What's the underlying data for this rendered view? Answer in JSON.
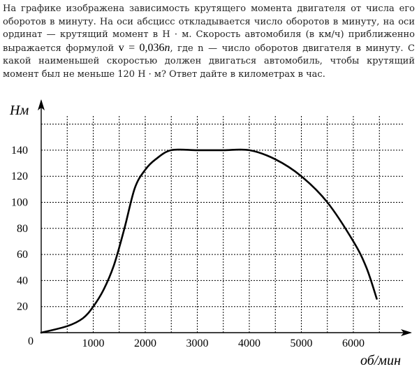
{
  "problem": {
    "text_before": "На графике изображена зависимость крутящего момента двигателя от числа его оборотов в минуту. На оси абсцисс откладывается число оборотов в минуту, на оси ординат — крутящий момент в Н · м. Скорость автомобиля (в км/ч) приближенно выражается формулой",
    "formula_lhs": "v = 0,036",
    "formula_var": "n",
    "text_after": ", где  n  — число оборотов двигателя в минуту. С какой наименьшей скоростью должен двигаться автомобиль, чтобы крутящий момент был не меньше 120 Н · м? Ответ дайте в километрах в час."
  },
  "chart_data": {
    "type": "line",
    "xlabel": "об/мин",
    "ylabel": "Нм",
    "origin_label": "0",
    "xlim": [
      0,
      7000
    ],
    "ylim": [
      0,
      160
    ],
    "x_ticks": [
      1000,
      2000,
      3000,
      4000,
      5000,
      6000
    ],
    "y_ticks": [
      20,
      40,
      60,
      80,
      100,
      120,
      140
    ],
    "grid": true,
    "grid_x_step": 500,
    "grid_y_step": 20,
    "series": [
      {
        "values": [
          [
            0,
            0
          ],
          [
            500,
            5
          ],
          [
            800,
            11
          ],
          [
            1000,
            20
          ],
          [
            1200,
            33
          ],
          [
            1400,
            52
          ],
          [
            1600,
            80
          ],
          [
            1800,
            111
          ],
          [
            2000,
            125
          ],
          [
            2200,
            133
          ],
          [
            2500,
            140
          ],
          [
            3000,
            140
          ],
          [
            3500,
            140
          ],
          [
            4000,
            140
          ],
          [
            4500,
            133
          ],
          [
            5000,
            120
          ],
          [
            5500,
            100
          ],
          [
            6000,
            70
          ],
          [
            6250,
            50
          ],
          [
            6450,
            26
          ]
        ]
      }
    ],
    "line_color": "#000000",
    "grid_color": "#000000"
  }
}
